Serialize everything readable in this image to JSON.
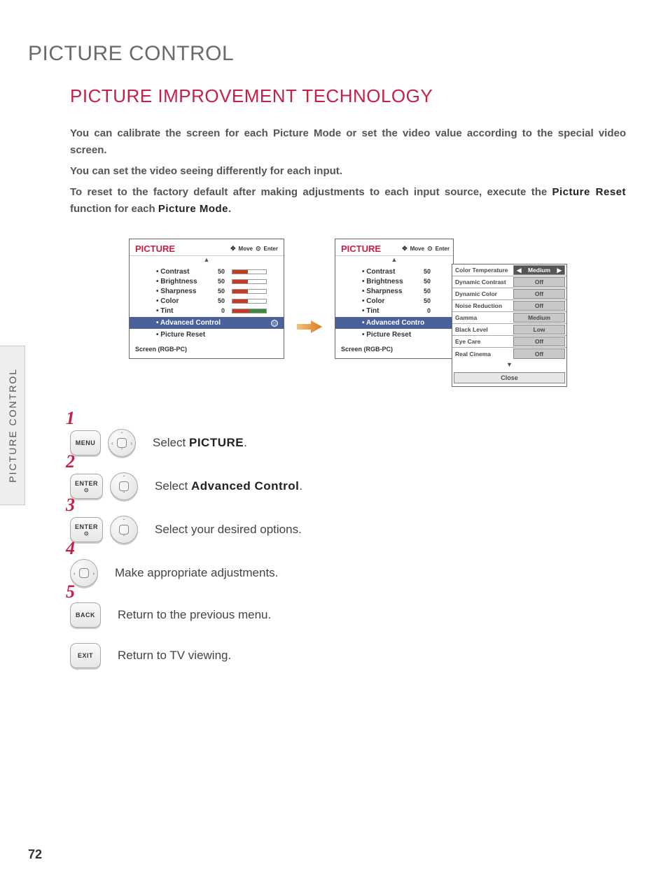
{
  "page_title": "PICTURE CONTROL",
  "section_title": "PICTURE IMPROVEMENT TECHNOLOGY",
  "side_tab": "PICTURE CONTROL",
  "page_number": "72",
  "intro": {
    "line1": "You can calibrate the screen for each Picture Mode or set the video value according to the special video screen.",
    "line2": "You can set the video seeing differently for each input.",
    "line3_a": "To reset to the factory default after making adjustments to each input source, execute the ",
    "line3_b": "Picture Reset",
    "line3_c": " function for each ",
    "line3_d": "Picture Mode",
    "line3_e": "."
  },
  "menu": {
    "title": "PICTURE",
    "header_move": "Move",
    "header_enter": "Enter",
    "items": [
      {
        "label": "Contrast",
        "value": "50",
        "fill": 45
      },
      {
        "label": "Brightness",
        "value": "50",
        "fill": 45
      },
      {
        "label": "Sharpness",
        "value": "50",
        "fill": 45
      },
      {
        "label": "Color",
        "value": "50",
        "fill": 45
      }
    ],
    "tint_label": "Tint",
    "tint_value": "0",
    "advanced_label": "Advanced Control",
    "picture_reset_label": "Picture Reset",
    "footer": "Screen (RGB-PC)"
  },
  "advanced_panel": {
    "rows": [
      {
        "label": "Color Temperature",
        "value": "Medium",
        "selected": true
      },
      {
        "label": "Dynamic Contrast",
        "value": "Off"
      },
      {
        "label": "Dynamic Color",
        "value": "Off"
      },
      {
        "label": "Noise Reduction",
        "value": "Off"
      },
      {
        "label": "Gamma",
        "value": "Medium"
      },
      {
        "label": "Black Level",
        "value": "Low"
      },
      {
        "label": "Eye Care",
        "value": "Off"
      },
      {
        "label": "Real Cinema",
        "value": "Off"
      }
    ],
    "close": "Close"
  },
  "arrow_color": "#dc7a1f",
  "steps": [
    {
      "n": "1",
      "btn": "MENU",
      "nav": "full",
      "text_a": "Select ",
      "text_b": "PICTURE",
      "text_c": "."
    },
    {
      "n": "2",
      "btn": "ENTER",
      "btn_sub": "⊙",
      "nav": "ud",
      "text_a": "Select ",
      "text_b": "Advanced Control",
      "text_c": "."
    },
    {
      "n": "3",
      "btn": "ENTER",
      "btn_sub": "⊙",
      "nav": "ud",
      "text_a": "Select your desired options.",
      "text_b": "",
      "text_c": ""
    },
    {
      "n": "4",
      "btn": "",
      "nav": "lr",
      "text_a": "Make appropriate adjustments.",
      "text_b": "",
      "text_c": ""
    },
    {
      "n": "5",
      "btn": "BACK",
      "nav": "",
      "text_a": "Return to the previous menu.",
      "text_b": "",
      "text_c": ""
    },
    {
      "n": "",
      "btn": "EXIT",
      "nav": "",
      "text_a": "Return to TV viewing.",
      "text_b": "",
      "text_c": ""
    }
  ],
  "colors": {
    "accent": "#c61f48",
    "slider_fill": "#c43b22",
    "adv_bg": "#4b619a"
  }
}
